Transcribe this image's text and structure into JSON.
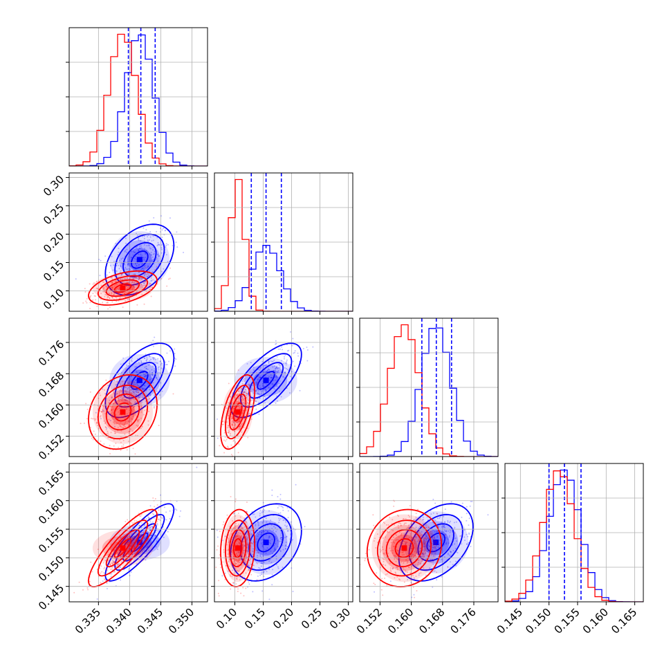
{
  "chart_data": {
    "type": "corner",
    "grid": true,
    "colors": {
      "series_a": "#0000ff",
      "series_b": "#ff0000"
    },
    "series": [
      {
        "color_key": "series_a",
        "mean": [
          0.3416,
          0.155,
          0.1663,
          0.1527
        ],
        "sd": [
          0.0022,
          0.025,
          0.0038,
          0.0027
        ],
        "rho": [
          [
            1,
            0.4,
            0.6,
            0.85
          ],
          [
            0.4,
            1,
            0.7,
            0.3
          ],
          [
            0.6,
            0.7,
            1,
            0.4
          ],
          [
            0.85,
            0.3,
            0.4,
            1
          ]
        ]
      },
      {
        "color_key": "series_b",
        "mean": [
          0.3389,
          0.105,
          0.1582,
          0.1517
        ],
        "sd": [
          0.0022,
          0.012,
          0.0038,
          0.0027
        ],
        "rho": [
          [
            1,
            0.45,
            0.2,
            0.85
          ],
          [
            0.45,
            1,
            0.55,
            0.1
          ],
          [
            0.2,
            0.55,
            1,
            0.1
          ],
          [
            0.85,
            0.1,
            0.1,
            1
          ]
        ]
      }
    ],
    "quantile_lines": {
      "color_key": "series_a",
      "values": [
        [
          0.3398,
          0.3418,
          0.3441
        ],
        [
          0.129,
          0.155,
          0.182
        ],
        [
          0.1627,
          0.1664,
          0.1703
        ],
        [
          0.15,
          0.1527,
          0.1556
        ]
      ]
    },
    "params": [
      {
        "lim": [
          0.3303,
          0.3525
        ],
        "ticks": [
          "0.335",
          "0.340",
          "0.345",
          "0.350"
        ],
        "tick_values": [
          0.335,
          0.34,
          0.345,
          0.35
        ]
      },
      {
        "lim": [
          0.064,
          0.308
        ],
        "ticks": [
          "0.10",
          "0.15",
          "0.20",
          "0.25",
          "0.30"
        ],
        "tick_values": [
          0.1,
          0.15,
          0.2,
          0.25,
          0.3
        ]
      },
      {
        "lim": [
          0.1468,
          0.1822
        ],
        "ticks": [
          "0.152",
          "0.160",
          "0.168",
          "0.176"
        ],
        "tick_values": [
          0.152,
          0.16,
          0.168,
          0.176
        ]
      },
      {
        "lim": [
          0.1423,
          0.1665
        ],
        "ticks": [
          "0.145",
          "0.150",
          "0.155",
          "0.160",
          "0.165"
        ],
        "tick_values": [
          0.145,
          0.15,
          0.155,
          0.16,
          0.165
        ]
      }
    ]
  }
}
